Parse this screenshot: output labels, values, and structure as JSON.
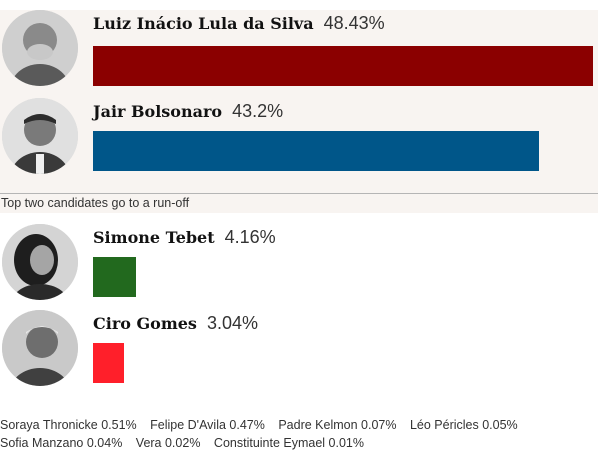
{
  "chart_data": {
    "type": "bar",
    "orientation": "horizontal",
    "title": "",
    "unit": "%",
    "xlim": [
      0,
      50
    ],
    "categories": [
      "Luiz Inácio Lula da Silva",
      "Jair Bolsonaro",
      "Simone Tebet",
      "Ciro Gomes"
    ],
    "values": [
      48.43,
      43.2,
      4.16,
      3.04
    ],
    "value_labels": [
      "48.43%",
      "43.2%",
      "4.16%",
      "3.04%"
    ],
    "colors": [
      "#8b0000",
      "#005689",
      "#22691e",
      "#ff1f2a"
    ],
    "annotation": "Top two candidates go to a run-off",
    "other_candidates": [
      {
        "name": "Soraya Thronicke",
        "value": 0.51,
        "label": "0.51%"
      },
      {
        "name": "Felipe D'Avila",
        "value": 0.47,
        "label": "0.47%"
      },
      {
        "name": "Padre Kelmon",
        "value": 0.07,
        "label": "0.07%"
      },
      {
        "name": "Léo Péricles",
        "value": 0.05,
        "label": "0.05%"
      },
      {
        "name": "Sofia Manzano",
        "value": 0.04,
        "label": "0.04%"
      },
      {
        "name": "Vera",
        "value": 0.02,
        "label": "0.02%"
      },
      {
        "name": "Constituinte Eymael",
        "value": 0.01,
        "label": "0.01%"
      }
    ]
  }
}
